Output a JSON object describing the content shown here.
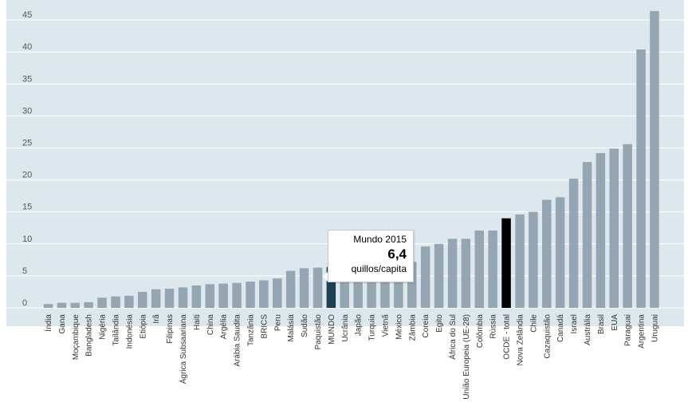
{
  "chart_data": {
    "type": "bar",
    "title": "",
    "xlabel": "",
    "ylabel": "",
    "ylim": [
      0,
      47
    ],
    "yticks": [
      0,
      5,
      10,
      15,
      20,
      25,
      30,
      35,
      40,
      45
    ],
    "grid": true,
    "categories": [
      "Índia",
      "Gana",
      "Moçambique",
      "Bangladesh",
      "Nigéria",
      "Tailândia",
      "Indonésia",
      "Etiópia",
      "Irã",
      "Filipinas",
      "Ágrica Subsaariana",
      "Haiti",
      "China",
      "Argélia",
      "Arábia Saudita",
      "Tanzânia",
      "BRICS",
      "Peru",
      "Malásia",
      "Sudão",
      "Paquistão",
      "MUNDO",
      "Ucrânia",
      "Japão",
      "Turquia",
      "Vietnã",
      "México",
      "Zâmbia",
      "Coreia",
      "Egito",
      "África do Sul",
      "União Europeia (UE-28)",
      "Colômbia",
      "Rússia",
      "OCDE - total",
      "Nova Zelândia",
      "Chile",
      "Cazaquistão",
      "Canadá",
      "Israel",
      "Austrália",
      "Brasil",
      "EUA",
      "Paraguai",
      "Argentina",
      "Uruguai"
    ],
    "values": [
      0.6,
      0.8,
      0.8,
      0.9,
      1.6,
      1.8,
      1.9,
      2.5,
      2.9,
      3.0,
      3.2,
      3.5,
      3.7,
      3.8,
      3.9,
      4.1,
      4.3,
      4.6,
      5.8,
      6.2,
      6.3,
      6.4,
      6.5,
      6.6,
      6.8,
      6.9,
      7.0,
      7.2,
      9.6,
      10.0,
      10.8,
      10.8,
      12.1,
      12.1,
      14.0,
      14.6,
      15.0,
      16.9,
      17.3,
      20.2,
      22.8,
      24.2,
      24.9,
      25.6,
      40.4,
      46.4
    ],
    "highlight": {
      "MUNDO": "#1d4057",
      "OCDE - total": "#000000"
    },
    "bar_color": "#93a6b1",
    "plot_background": "#dde8ee"
  },
  "tooltip": {
    "title": "Mundo 2015",
    "value": "6,4",
    "unit": "quillos/capita"
  }
}
